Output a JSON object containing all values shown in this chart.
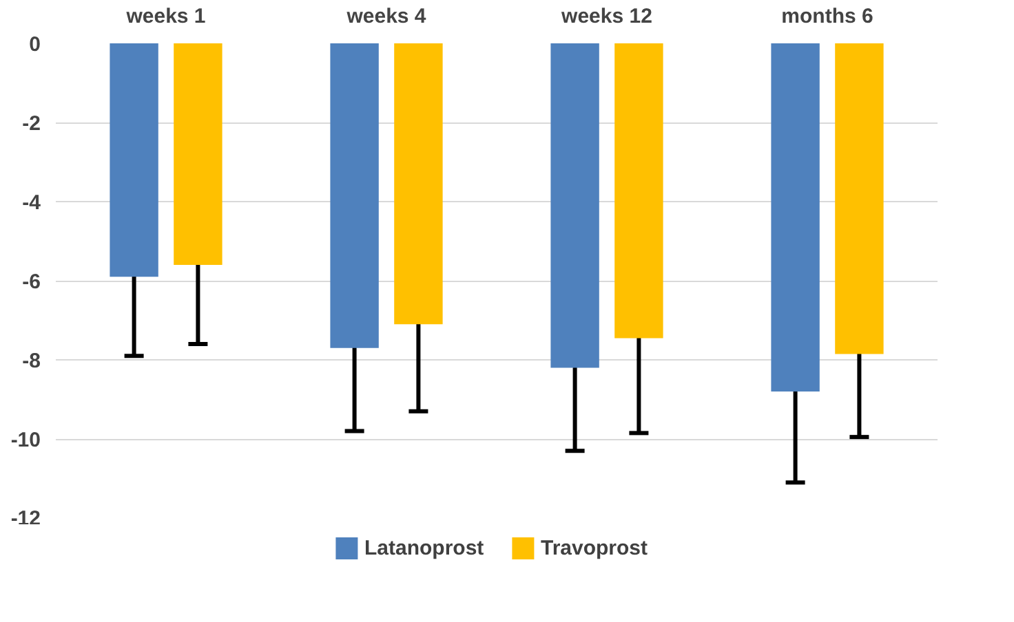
{
  "chart_data": {
    "type": "bar",
    "categories": [
      "weeks 1",
      "weeks 4",
      "weeks 12",
      "months 6"
    ],
    "series": [
      {
        "name": "Latanoprost",
        "color": "#4f81bd",
        "values": [
          -5.9,
          -7.7,
          -8.2,
          -8.8
        ],
        "errors": [
          2.0,
          2.1,
          2.1,
          2.3
        ]
      },
      {
        "name": "Travoprost",
        "color": "#ffc000",
        "values": [
          -5.6,
          -7.1,
          -7.45,
          -7.85
        ],
        "errors": [
          2.0,
          2.2,
          2.4,
          2.1
        ]
      }
    ],
    "ylim": [
      -12,
      0
    ],
    "yticks": [
      0,
      -2,
      -4,
      -6,
      -8,
      -10,
      -12
    ],
    "grid": "y",
    "legend": "bottom"
  }
}
